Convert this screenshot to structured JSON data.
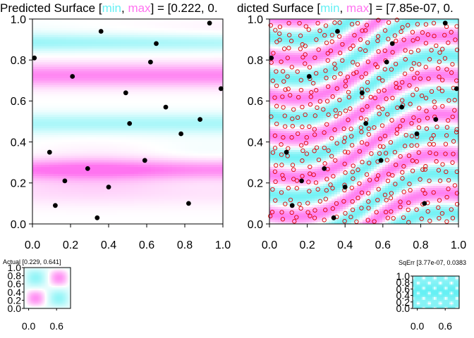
{
  "colors": {
    "min": "#66f0f4",
    "max": "#ff73f0",
    "mid": "#ffffff",
    "design_point": "#000000",
    "candidate_point": "#e00000",
    "text": "#000000"
  },
  "chart_data": [
    {
      "type": "heatmap",
      "title_prefix": "Predicted Surface [",
      "title_min": "min",
      "title_sep": ", ",
      "title_max": "max",
      "title_suffix": "] = [0.222, 0.",
      "xlim": [
        0,
        1
      ],
      "ylim": [
        0,
        1
      ],
      "xticks": [
        "0.0",
        "0.2",
        "0.4",
        "0.6",
        "0.8",
        "1.0"
      ],
      "yticks": [
        "0.0",
        "0.2",
        "0.4",
        "0.6",
        "0.8",
        "1.0"
      ],
      "surface": "horizontal bands: high near y=0.26 and y=0.72, low near y=0.48 and y=0.88",
      "points": [
        [
          0.01,
          0.81
        ],
        [
          0.09,
          0.35
        ],
        [
          0.12,
          0.09
        ],
        [
          0.17,
          0.21
        ],
        [
          0.21,
          0.72
        ],
        [
          0.29,
          0.27
        ],
        [
          0.34,
          0.03
        ],
        [
          0.36,
          0.94
        ],
        [
          0.4,
          0.18
        ],
        [
          0.49,
          0.64
        ],
        [
          0.51,
          0.49
        ],
        [
          0.59,
          0.31
        ],
        [
          0.62,
          0.79
        ],
        [
          0.65,
          0.88
        ],
        [
          0.7,
          0.57
        ],
        [
          0.78,
          0.44
        ],
        [
          0.82,
          0.1
        ],
        [
          0.88,
          0.51
        ],
        [
          0.93,
          0.98
        ],
        [
          0.99,
          0.66
        ]
      ]
    },
    {
      "type": "heatmap",
      "title_prefix": "dicted Surface [",
      "title_min": "min",
      "title_sep": ", ",
      "title_max": "max",
      "title_suffix": "] = [7.85e-07, 0.",
      "xlim": [
        0,
        1
      ],
      "ylim": [
        0,
        1
      ],
      "xticks": [
        "0.0",
        "0.2",
        "0.4",
        "0.6",
        "0.8",
        "1.0"
      ],
      "yticks": [
        "0.0",
        "0.2",
        "0.4",
        "0.6",
        "0.8",
        "1.0"
      ],
      "surface": "wavy diagonal bands alternating cyan and magenta",
      "points": [
        [
          0.01,
          0.81
        ],
        [
          0.09,
          0.35
        ],
        [
          0.12,
          0.09
        ],
        [
          0.17,
          0.21
        ],
        [
          0.21,
          0.72
        ],
        [
          0.29,
          0.27
        ],
        [
          0.34,
          0.03
        ],
        [
          0.36,
          0.94
        ],
        [
          0.4,
          0.18
        ],
        [
          0.49,
          0.64
        ],
        [
          0.51,
          0.49
        ],
        [
          0.59,
          0.31
        ],
        [
          0.62,
          0.79
        ],
        [
          0.65,
          0.88
        ],
        [
          0.7,
          0.57
        ],
        [
          0.78,
          0.44
        ],
        [
          0.82,
          0.1
        ],
        [
          0.88,
          0.51
        ],
        [
          0.93,
          0.98
        ],
        [
          0.99,
          0.66
        ]
      ],
      "candidate_points": "approximately 500 open red circles spread over the unit square"
    },
    {
      "type": "heatmap",
      "title": "Actual [0.229, 0.641]",
      "xlim": [
        0,
        1
      ],
      "ylim": [
        0,
        1
      ],
      "xticks": [
        "0.0",
        "0.6"
      ],
      "yticks": [
        "0.0",
        "0.2",
        "0.4",
        "0.6",
        "0.8",
        "1.0"
      ],
      "surface": "2x2 checker of magenta blobs on cyan background"
    },
    {
      "type": "heatmap",
      "title": "SqErr [3.77e-07, 0.0383",
      "xlim": [
        0,
        1
      ],
      "ylim": [
        0,
        1
      ],
      "xticks": [
        "0.0",
        "0.6"
      ],
      "yticks": [
        "0.0",
        "0.2",
        "0.4",
        "0.6",
        "0.8",
        "1.0"
      ],
      "surface": "cyan field with rows of white horizontal spots"
    }
  ]
}
